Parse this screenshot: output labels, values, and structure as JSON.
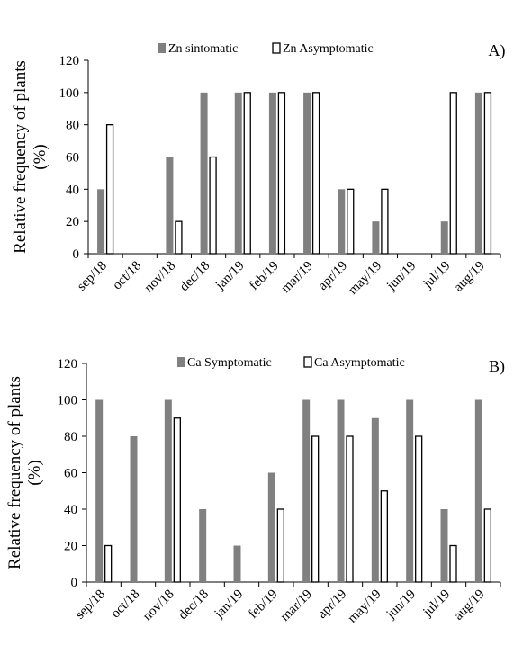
{
  "chart_data": [
    {
      "type": "bar",
      "panel_label": "A)",
      "ylabel_line1": "Relative frequency of plants",
      "ylabel_line2": "(%)",
      "ylim": [
        0,
        120
      ],
      "yticks": [
        "0",
        "20",
        "40",
        "60",
        "80",
        "100",
        "120"
      ],
      "grid": false,
      "legend_position": "top-center",
      "categories": [
        "sep/18",
        "oct/18",
        "nov/18",
        "dec/18",
        "jan/19",
        "feb/19",
        "mar/19",
        "apr/19",
        "may/19",
        "jun/19",
        "jul/19",
        "aug/19"
      ],
      "series": [
        {
          "name": "Zn sintomatic",
          "color": "#808080",
          "values": [
            40,
            0,
            60,
            100,
            100,
            100,
            100,
            40,
            20,
            0,
            20,
            100
          ]
        },
        {
          "name": "Zn Asymptomatic",
          "color": "#ffffff",
          "values": [
            80,
            0,
            20,
            60,
            100,
            100,
            100,
            40,
            40,
            0,
            100,
            100
          ]
        }
      ]
    },
    {
      "type": "bar",
      "panel_label": "B)",
      "ylabel_line1": "Relative frequency of plants",
      "ylabel_line2": "(%)",
      "ylim": [
        0,
        120
      ],
      "yticks": [
        "0",
        "20",
        "40",
        "60",
        "80",
        "100",
        "120"
      ],
      "grid": false,
      "legend_position": "top-center",
      "categories": [
        "sep/18",
        "oct/18",
        "nov/18",
        "dec/18",
        "jan/19",
        "feb/19",
        "mar/19",
        "apr/19",
        "may/19",
        "jun/19",
        "jul/19",
        "aug/19"
      ],
      "series": [
        {
          "name": "Ca Symptomatic",
          "color": "#808080",
          "values": [
            100,
            80,
            100,
            40,
            20,
            60,
            100,
            100,
            90,
            100,
            40,
            100
          ]
        },
        {
          "name": "Ca Asymptomatic",
          "color": "#ffffff",
          "values": [
            20,
            0,
            90,
            0,
            0,
            40,
            80,
            80,
            50,
            80,
            20,
            40
          ]
        }
      ]
    }
  ]
}
